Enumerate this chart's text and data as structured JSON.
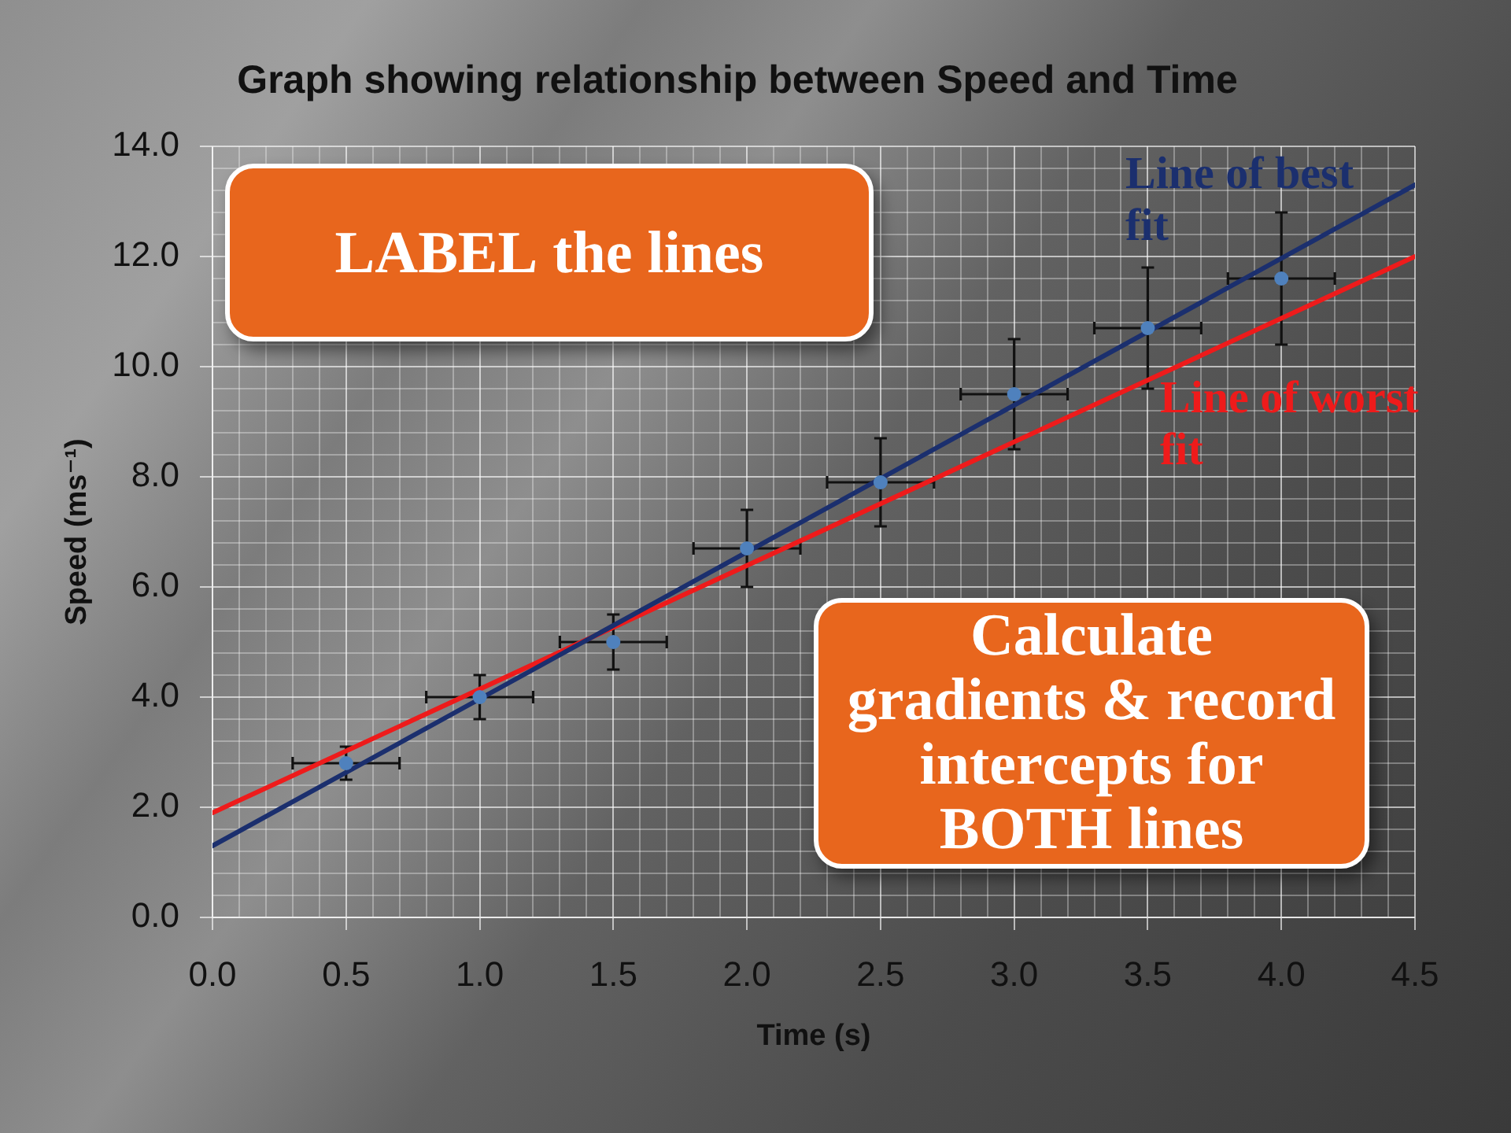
{
  "chart_data": {
    "type": "scatter",
    "title": "Graph showing relationship between Speed and Time",
    "xlabel": "Time (s)",
    "ylabel": "Speed (ms⁻¹)",
    "annotations": [
      "LABEL the lines",
      "Calculate gradients & record intercepts for BOTH lines"
    ],
    "series": [
      {
        "type": "scatter",
        "color": "#4f81bd",
        "marker": "circle",
        "x": [
          0.5,
          1,
          1.5,
          2,
          2.5,
          3,
          3.5,
          4
        ],
        "values": [
          2.8,
          4.0,
          5.0,
          6.7,
          7.9,
          9.5,
          10.7,
          11.6
        ],
        "errors": [
          0.3,
          0.4,
          0.5,
          0.7,
          0.8,
          1.0,
          1.1,
          1.2
        ],
        "xerrors": [
          0.2,
          0.2,
          0.2,
          0.2,
          0.2,
          0.2,
          0.2,
          0.2
        ]
      },
      {
        "type": "line",
        "name": "Line of best fit",
        "color": "#1b2f6e",
        "x": [
          0,
          4.5
        ],
        "values": [
          1.3,
          13.3
        ]
      },
      {
        "type": "line",
        "name": "Line of worst fit",
        "color": "#ee1b1b",
        "x": [
          0,
          4.5
        ],
        "values": [
          1.9,
          12.0
        ]
      }
    ],
    "xlim": [
      0,
      4.5
    ],
    "ylim": [
      0,
      14
    ],
    "xticks": [
      {
        "value": 0,
        "label": "0.0"
      },
      {
        "value": 0.1,
        "label": null
      },
      {
        "value": 0.2,
        "label": null
      },
      {
        "value": 0.3,
        "label": null
      },
      {
        "value": 0.4,
        "label": null
      },
      {
        "value": 0.5,
        "label": "0.5"
      },
      {
        "value": 0.6,
        "label": null
      },
      {
        "value": 0.7,
        "label": null
      },
      {
        "value": 0.8,
        "label": null
      },
      {
        "value": 0.9,
        "label": null
      },
      {
        "value": 1,
        "label": "1.0"
      },
      {
        "value": 1.1,
        "label": null
      },
      {
        "value": 1.2,
        "label": null
      },
      {
        "value": 1.3,
        "label": null
      },
      {
        "value": 1.4,
        "label": null
      },
      {
        "value": 1.5,
        "label": "1.5"
      },
      {
        "value": 1.6,
        "label": null
      },
      {
        "value": 1.7,
        "label": null
      },
      {
        "value": 1.8,
        "label": null
      },
      {
        "value": 1.9,
        "label": null
      },
      {
        "value": 2,
        "label": "2.0"
      },
      {
        "value": 2.1,
        "label": null
      },
      {
        "value": 2.2,
        "label": null
      },
      {
        "value": 2.3,
        "label": null
      },
      {
        "value": 2.4,
        "label": null
      },
      {
        "value": 2.5,
        "label": "2.5"
      },
      {
        "value": 2.6,
        "label": null
      },
      {
        "value": 2.7,
        "label": null
      },
      {
        "value": 2.8,
        "label": null
      },
      {
        "value": 2.9,
        "label": null
      },
      {
        "value": 3,
        "label": "3.0"
      },
      {
        "value": 3.1,
        "label": null
      },
      {
        "value": 3.2,
        "label": null
      },
      {
        "value": 3.3,
        "label": null
      },
      {
        "value": 3.4,
        "label": null
      },
      {
        "value": 3.5,
        "label": "3.5"
      },
      {
        "value": 3.6,
        "label": null
      },
      {
        "value": 3.7,
        "label": null
      },
      {
        "value": 3.8,
        "label": null
      },
      {
        "value": 3.9,
        "label": null
      },
      {
        "value": 4,
        "label": "4.0"
      },
      {
        "value": 4.1,
        "label": null
      },
      {
        "value": 4.2,
        "label": null
      },
      {
        "value": 4.3,
        "label": null
      },
      {
        "value": 4.4,
        "label": null
      },
      {
        "value": 4.5,
        "label": "4.5"
      }
    ],
    "yticks": [
      {
        "value": 0,
        "label": "0.0"
      },
      {
        "value": 0.4,
        "label": null
      },
      {
        "value": 0.8,
        "label": null
      },
      {
        "value": 1.2,
        "label": null
      },
      {
        "value": 1.6,
        "label": null
      },
      {
        "value": 2,
        "label": "2.0"
      },
      {
        "value": 2.4,
        "label": null
      },
      {
        "value": 2.8,
        "label": null
      },
      {
        "value": 3.2,
        "label": null
      },
      {
        "value": 3.6,
        "label": null
      },
      {
        "value": 4,
        "label": "4.0"
      },
      {
        "value": 4.4,
        "label": null
      },
      {
        "value": 4.8,
        "label": null
      },
      {
        "value": 5.2,
        "label": null
      },
      {
        "value": 5.6,
        "label": null
      },
      {
        "value": 6,
        "label": "6.0"
      },
      {
        "value": 6.4,
        "label": null
      },
      {
        "value": 6.8,
        "label": null
      },
      {
        "value": 7.2,
        "label": null
      },
      {
        "value": 7.6,
        "label": null
      },
      {
        "value": 8,
        "label": "8.0"
      },
      {
        "value": 8.4,
        "label": null
      },
      {
        "value": 8.8,
        "label": null
      },
      {
        "value": 9.2,
        "label": null
      },
      {
        "value": 9.6,
        "label": null
      },
      {
        "value": 10,
        "label": "10.0"
      },
      {
        "value": 10.4,
        "label": null
      },
      {
        "value": 10.8,
        "label": null
      },
      {
        "value": 11.2,
        "label": null
      },
      {
        "value": 11.6,
        "label": null
      },
      {
        "value": 12,
        "label": "12.0"
      },
      {
        "value": 12.4,
        "label": null
      },
      {
        "value": 12.8,
        "label": null
      },
      {
        "value": 13.2,
        "label": null
      },
      {
        "value": 13.6,
        "label": null
      },
      {
        "value": 14,
        "label": "14.0"
      }
    ],
    "grid": true
  }
}
